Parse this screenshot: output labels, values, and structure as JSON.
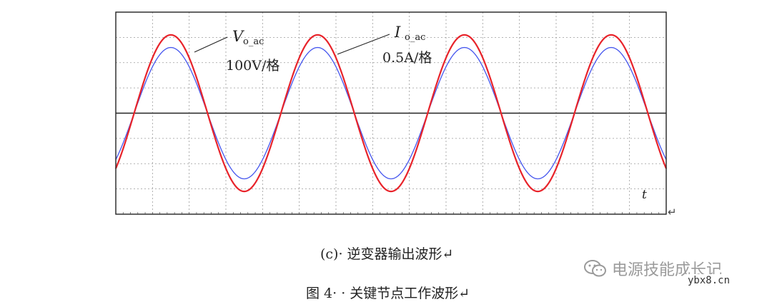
{
  "chart_data": {
    "type": "line",
    "x_axis_label": "t",
    "x_range": [
      0,
      7.5
    ],
    "y_range": [
      -4,
      4
    ],
    "grid": true,
    "grid_divisions": {
      "x": 15,
      "y": 8
    },
    "series": [
      {
        "name": "V_o_ac",
        "color": "#e8232a",
        "amplitude": 3.1,
        "period": 2.0,
        "x": [
          0,
          0.25,
          0.5,
          0.75,
          1.0,
          1.25,
          1.5,
          1.75,
          2.0,
          2.25,
          2.5,
          2.75,
          3.0,
          3.25,
          3.5,
          3.75,
          4.0,
          4.25,
          4.5,
          4.75,
          5.0,
          5.25,
          5.5,
          5.75,
          6.0,
          6.25,
          6.5,
          6.75,
          7.0,
          7.25,
          7.5
        ],
        "y": [
          -2.19,
          -0.0,
          2.19,
          3.1,
          2.19,
          0.0,
          -2.19,
          -3.1,
          -2.19,
          -0.0,
          2.19,
          3.1,
          2.19,
          0.0,
          -2.19,
          -3.1,
          -2.19,
          -0.0,
          2.19,
          3.1,
          2.19,
          0.0,
          -2.19,
          -3.1,
          -2.19,
          0.0,
          2.19,
          3.1,
          2.19,
          0.0,
          -2.19
        ],
        "phase": -0.785
      },
      {
        "name": "I_o_ac",
        "color": "#4455ee",
        "amplitude": 2.6,
        "period": 2.0,
        "x": [
          0,
          0.25,
          0.5,
          0.75,
          1.0,
          1.25,
          1.5,
          1.75,
          2.0,
          2.25,
          2.5,
          2.75,
          3.0,
          3.25,
          3.5,
          3.75,
          4.0,
          4.25,
          4.5,
          4.75,
          5.0,
          5.25,
          5.5,
          5.75,
          6.0,
          6.25,
          6.5,
          6.75,
          7.0,
          7.25,
          7.5
        ],
        "y": [
          -1.84,
          -0.0,
          1.84,
          2.6,
          1.84,
          0.0,
          -1.84,
          -2.6,
          -1.84,
          -0.0,
          1.84,
          2.6,
          1.84,
          0.0,
          -1.84,
          -2.6,
          -1.84,
          -0.0,
          1.84,
          2.6,
          1.84,
          0.0,
          -1.84,
          -2.6,
          -1.84,
          0.0,
          1.84,
          2.6,
          1.84,
          0.0,
          -1.84
        ],
        "phase": -0.785
      }
    ],
    "annotations": [
      {
        "main": "V",
        "sub": "o_ac",
        "scale": "100V/格"
      },
      {
        "main": "I",
        "sub": "o_ac",
        "scale": "0.5A/格"
      }
    ],
    "return_mark": "↵"
  },
  "captions": {
    "sub": "(c)· 逆变器输出波形↵",
    "figure": "图 4· · 关键节点工作波形↵"
  },
  "watermark": {
    "text": "电源技能成长记",
    "site": "ybx8.cn"
  }
}
